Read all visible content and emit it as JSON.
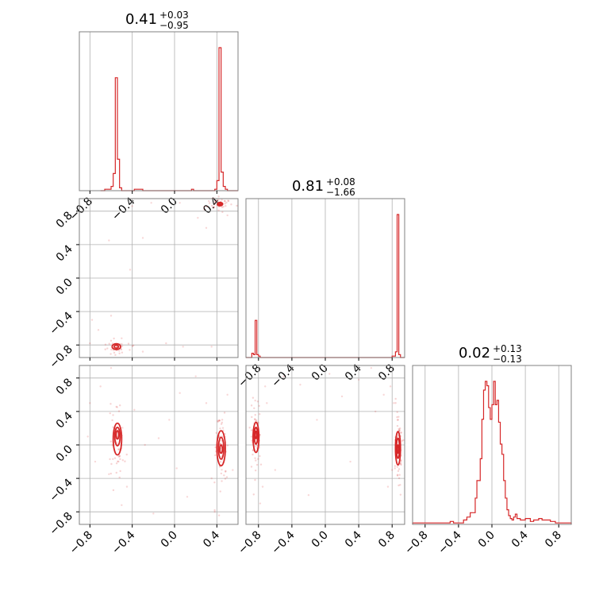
{
  "figure": {
    "accent_color": "#d62728",
    "grid_color": "#b0b0b0",
    "frame_color": "#808080"
  },
  "chart_data": [
    {
      "panel": "marginal-1",
      "type": "histogram-step",
      "title": {
        "value": "0.41",
        "upper": "+0.03",
        "lower": "−0.95"
      },
      "xlim": [
        -0.9,
        0.6
      ],
      "x_ticks": [
        "−0.8",
        "−0.4",
        "0.0",
        "0.4"
      ],
      "x_tick_values": [
        -0.8,
        -0.4,
        0.0,
        0.4
      ],
      "grid": true,
      "bins": [
        -0.7,
        -0.66,
        -0.62,
        -0.6,
        -0.58,
        -0.56,
        -0.54,
        -0.52,
        -0.5,
        -0.48,
        -0.4,
        -0.38,
        -0.3,
        -0.1,
        -0.08,
        0.0,
        0.02,
        0.16,
        0.18,
        0.3,
        0.38,
        0.4,
        0.42,
        0.44,
        0.46,
        0.48,
        0.5,
        0.52,
        0.56
      ],
      "counts": [
        0,
        0.01,
        0.01,
        0.03,
        0.12,
        0.79,
        0.22,
        0.02,
        0.0,
        0.0,
        0.0,
        0.01,
        0.0,
        0.0,
        0.0,
        0.0,
        0.0,
        0.01,
        0.0,
        0.0,
        0.01,
        0.07,
        1.0,
        0.13,
        0.03,
        0.01,
        0.0,
        0.0,
        0
      ]
    },
    {
      "panel": "marginal-2",
      "type": "histogram-step",
      "title": {
        "value": "0.81",
        "upper": "+0.08",
        "lower": "−1.66"
      },
      "xlim": [
        -0.95,
        0.95
      ],
      "x_ticks": [
        "−0.8",
        "−0.4",
        "0.0",
        "0.4",
        "0.8"
      ],
      "x_tick_values": [
        -0.8,
        -0.4,
        0.0,
        0.4,
        0.8
      ],
      "grid": true,
      "bins": [
        -0.95,
        -0.88,
        -0.86,
        -0.84,
        -0.82,
        -0.8,
        -0.78,
        -0.7,
        -0.6,
        -0.44,
        -0.4,
        -0.1,
        0.0,
        0.5,
        0.7,
        0.76,
        0.8,
        0.84,
        0.86,
        0.88,
        0.9,
        0.92,
        0.95
      ],
      "counts": [
        0,
        0.03,
        0.02,
        0.26,
        0.02,
        0.01,
        0.0,
        0.0,
        0.0,
        0.0,
        0.0,
        0.0,
        0.0,
        0.0,
        0.0,
        0.0,
        0.01,
        0.04,
        1.0,
        0.02,
        0.0,
        0.0,
        0
      ]
    },
    {
      "panel": "marginal-3",
      "type": "histogram-step",
      "title": {
        "value": "0.02",
        "upper": "+0.13",
        "lower": "−0.13"
      },
      "xlim": [
        -0.95,
        0.95
      ],
      "x_ticks": [
        "−0.8",
        "−0.4",
        "0.0",
        "0.4",
        "0.8"
      ],
      "x_tick_values": [
        -0.8,
        -0.4,
        0.0,
        0.4,
        0.8
      ],
      "grid": true,
      "bins": [
        -0.95,
        -0.8,
        -0.7,
        -0.6,
        -0.5,
        -0.46,
        -0.4,
        -0.34,
        -0.3,
        -0.26,
        -0.2,
        -0.18,
        -0.14,
        -0.12,
        -0.1,
        -0.08,
        -0.06,
        -0.04,
        -0.02,
        0.0,
        0.02,
        0.04,
        0.06,
        0.08,
        0.1,
        0.12,
        0.14,
        0.16,
        0.18,
        0.2,
        0.22,
        0.24,
        0.26,
        0.28,
        0.3,
        0.34,
        0.4,
        0.46,
        0.5,
        0.56,
        0.6,
        0.66,
        0.7,
        0.76,
        0.8,
        0.86,
        0.95
      ],
      "counts": [
        0.01,
        0.01,
        0.01,
        0.01,
        0.02,
        0.01,
        0.01,
        0.03,
        0.05,
        0.08,
        0.18,
        0.3,
        0.45,
        0.72,
        0.92,
        0.98,
        0.95,
        0.8,
        0.72,
        0.82,
        0.98,
        0.82,
        0.85,
        0.7,
        0.55,
        0.48,
        0.3,
        0.18,
        0.1,
        0.06,
        0.04,
        0.03,
        0.05,
        0.07,
        0.04,
        0.03,
        0.04,
        0.02,
        0.03,
        0.04,
        0.03,
        0.03,
        0.02,
        0.01,
        0.01,
        0.01,
        0.01
      ]
    },
    {
      "panel": "joint-2-vs-1",
      "type": "scatter-contour",
      "xlim": [
        -0.9,
        0.6
      ],
      "ylim": [
        -0.95,
        0.95
      ],
      "y_ticks": [
        "−0.8",
        "−0.4",
        "0.0",
        "0.4",
        "0.8"
      ],
      "y_tick_values": [
        -0.8,
        -0.4,
        0.0,
        0.4,
        0.8
      ],
      "grid": true,
      "clusters": [
        {
          "x": 0.43,
          "y": 0.89,
          "sx": 0.035,
          "sy": 0.025,
          "n": 45
        },
        {
          "x": -0.55,
          "y": -0.83,
          "sx": 0.04,
          "sy": 0.03,
          "n": 35
        }
      ],
      "contours": [
        {
          "x": 0.43,
          "y": 0.885,
          "rx": 0.025,
          "ry": 0.02
        },
        {
          "x": 0.43,
          "y": 0.885,
          "rx": 0.012,
          "ry": 0.01
        },
        {
          "x": -0.55,
          "y": -0.82,
          "rx": 0.04,
          "ry": 0.035
        },
        {
          "x": -0.55,
          "y": -0.82,
          "rx": 0.02,
          "ry": 0.018
        }
      ],
      "scatter": [
        [
          -0.78,
          -0.5
        ],
        [
          -0.72,
          -0.62
        ],
        [
          -0.8,
          -0.78
        ],
        [
          -0.6,
          -0.45
        ],
        [
          -0.5,
          -0.72
        ],
        [
          -0.3,
          -0.88
        ],
        [
          -0.4,
          0.86
        ],
        [
          -0.3,
          0.48
        ],
        [
          -0.22,
          0.9
        ],
        [
          -0.08,
          -0.78
        ],
        [
          0.08,
          -0.82
        ],
        [
          0.22,
          0.72
        ],
        [
          0.3,
          0.6
        ],
        [
          0.35,
          -0.82
        ],
        [
          -0.62,
          0.45
        ],
        [
          -0.42,
          0.1
        ],
        [
          0.05,
          0.9
        ],
        [
          0.28,
          0.82
        ],
        [
          0.38,
          0.88
        ],
        [
          0.5,
          0.75
        ]
      ]
    },
    {
      "panel": "joint-3-vs-1",
      "type": "scatter-contour",
      "xlim": [
        -0.9,
        0.6
      ],
      "ylim": [
        -0.95,
        0.95
      ],
      "x_ticks": [
        "−0.8",
        "−0.4",
        "0.0",
        "0.4"
      ],
      "x_tick_values": [
        -0.8,
        -0.4,
        0.0,
        0.4
      ],
      "y_ticks": [
        "−0.8",
        "−0.4",
        "0.0",
        "0.4",
        "0.8"
      ],
      "y_tick_values": [
        -0.8,
        -0.4,
        0.0,
        0.4,
        0.8
      ],
      "grid": true,
      "clusters": [
        {
          "x": -0.54,
          "y": 0.08,
          "sx": 0.02,
          "sy": 0.14,
          "n": 60
        },
        {
          "x": 0.44,
          "y": -0.05,
          "sx": 0.02,
          "sy": 0.16,
          "n": 60
        }
      ],
      "contours": [
        {
          "x": -0.54,
          "y": 0.07,
          "rx": 0.04,
          "ry": 0.19
        },
        {
          "x": -0.54,
          "y": 0.1,
          "rx": 0.025,
          "ry": 0.11
        },
        {
          "x": -0.54,
          "y": 0.12,
          "rx": 0.012,
          "ry": 0.05
        },
        {
          "x": 0.44,
          "y": -0.04,
          "rx": 0.04,
          "ry": 0.21
        },
        {
          "x": 0.44,
          "y": -0.04,
          "rx": 0.025,
          "ry": 0.13
        },
        {
          "x": 0.44,
          "y": -0.05,
          "rx": 0.012,
          "ry": 0.05
        }
      ],
      "scatter": [
        [
          -0.8,
          0.5
        ],
        [
          -0.82,
          0.1
        ],
        [
          -0.75,
          -0.2
        ],
        [
          -0.7,
          0.7
        ],
        [
          -0.6,
          0.92
        ],
        [
          -0.45,
          -0.5
        ],
        [
          -0.38,
          0.42
        ],
        [
          -0.28,
          0.0
        ],
        [
          -0.15,
          0.08
        ],
        [
          -0.05,
          0.3
        ],
        [
          0.05,
          0.62
        ],
        [
          0.12,
          -0.62
        ],
        [
          0.2,
          0.82
        ],
        [
          0.3,
          0.5
        ],
        [
          0.35,
          -0.4
        ],
        [
          0.5,
          0.6
        ],
        [
          0.55,
          -0.3
        ],
        [
          -0.62,
          -0.35
        ],
        [
          -0.5,
          -0.72
        ],
        [
          0.38,
          -0.8
        ],
        [
          -0.2,
          -0.82
        ],
        [
          0.02,
          -0.28
        ]
      ]
    },
    {
      "panel": "joint-3-vs-2",
      "type": "scatter-contour",
      "xlim": [
        -0.95,
        0.95
      ],
      "ylim": [
        -0.95,
        0.95
      ],
      "x_ticks": [
        "−0.8",
        "−0.4",
        "0.0",
        "0.4",
        "0.8"
      ],
      "x_tick_values": [
        -0.8,
        -0.4,
        0.0,
        0.4,
        0.8
      ],
      "grid": true,
      "clusters": [
        {
          "x": -0.83,
          "y": 0.1,
          "sx": 0.02,
          "sy": 0.14,
          "n": 60
        },
        {
          "x": 0.87,
          "y": -0.05,
          "sx": 0.015,
          "sy": 0.16,
          "n": 60
        }
      ],
      "contours": [
        {
          "x": -0.83,
          "y": 0.09,
          "rx": 0.035,
          "ry": 0.18
        },
        {
          "x": -0.83,
          "y": 0.11,
          "rx": 0.02,
          "ry": 0.1
        },
        {
          "x": -0.83,
          "y": 0.12,
          "rx": 0.01,
          "ry": 0.045
        },
        {
          "x": 0.87,
          "y": -0.04,
          "rx": 0.03,
          "ry": 0.2
        },
        {
          "x": 0.87,
          "y": -0.04,
          "rx": 0.018,
          "ry": 0.12
        },
        {
          "x": 0.87,
          "y": -0.05,
          "rx": 0.009,
          "ry": 0.05
        }
      ],
      "scatter": [
        [
          -0.7,
          0.5
        ],
        [
          -0.6,
          -0.3
        ],
        [
          -0.5,
          0.82
        ],
        [
          -0.3,
          0.72
        ],
        [
          -0.1,
          0.3
        ],
        [
          0.05,
          0.85
        ],
        [
          0.2,
          0.58
        ],
        [
          0.4,
          0.78
        ],
        [
          0.55,
          0.92
        ],
        [
          0.6,
          0.4
        ],
        [
          0.7,
          0.6
        ],
        [
          0.75,
          -0.5
        ],
        [
          -0.75,
          -0.5
        ],
        [
          -0.78,
          -0.7
        ],
        [
          -0.72,
          0.7
        ],
        [
          0.78,
          0.7
        ],
        [
          0.82,
          0.5
        ],
        [
          0.8,
          -0.3
        ],
        [
          -0.2,
          -0.6
        ],
        [
          0.3,
          -0.2
        ]
      ]
    }
  ]
}
